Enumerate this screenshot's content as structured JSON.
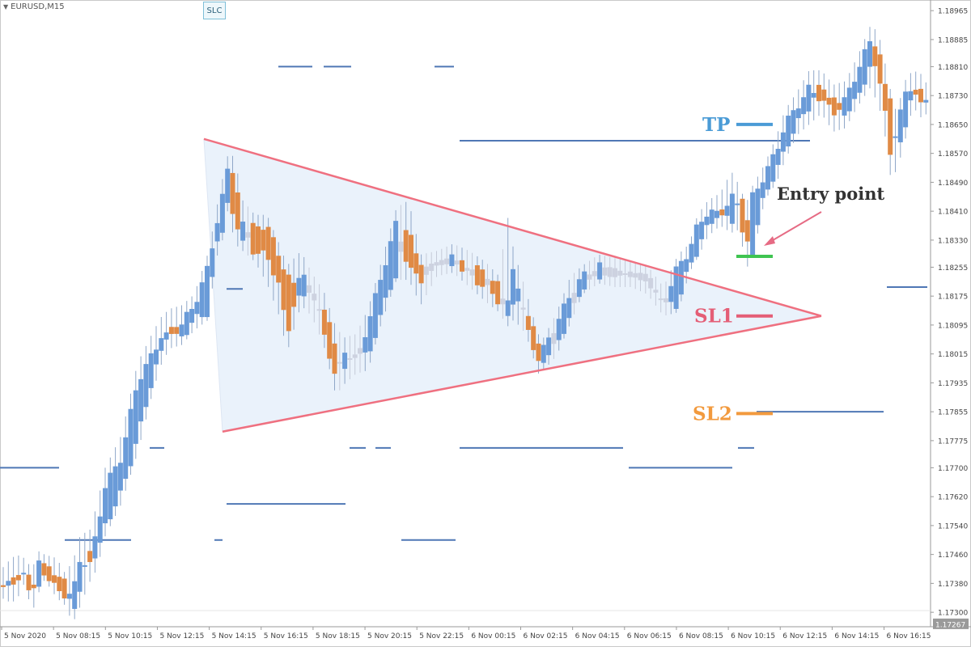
{
  "symbol": "EURUSD,M15",
  "slc_button": "SLC",
  "last_price": "1.17267",
  "annotations": {
    "tp": "TP",
    "sl1": "SL1",
    "sl2": "SL2",
    "entry": "Entry point"
  },
  "colors": {
    "bull": "#6a9bd8",
    "bear": "#e08a45",
    "neutral": "#cdd2e0",
    "triangle": "#ef7080",
    "triangle_fill": "#eaf2fb",
    "level_line": "#4f77b5",
    "tp": "#4a9bd6",
    "sl1": "#e45e76",
    "sl2": "#f29a3e",
    "entry_marker": "#3fc451",
    "arrow": "#e66b84"
  },
  "chart_data": {
    "type": "candlestick",
    "symbol": "EURUSD",
    "timeframe": "M15",
    "ylim": [
      1.1726,
      1.1899
    ],
    "y_ticks": [
      "1.18965",
      "1.18885",
      "1.18810",
      "1.18730",
      "1.18650",
      "1.18570",
      "1.18490",
      "1.18410",
      "1.18330",
      "1.18255",
      "1.18175",
      "1.18095",
      "1.18015",
      "1.17935",
      "1.17855",
      "1.17775",
      "1.17700",
      "1.17620",
      "1.17540",
      "1.17460",
      "1.17380",
      "1.17300"
    ],
    "x_ticks": [
      "5 Nov 2020",
      "5 Nov 08:15",
      "5 Nov 10:15",
      "5 Nov 12:15",
      "5 Nov 14:15",
      "5 Nov 16:15",
      "5 Nov 18:15",
      "5 Nov 20:15",
      "5 Nov 22:15",
      "6 Nov 00:15",
      "6 Nov 02:15",
      "6 Nov 04:15",
      "6 Nov 06:15",
      "6 Nov 08:15",
      "6 Nov 10:15",
      "6 Nov 12:15",
      "6 Nov 14:15",
      "6 Nov 16:15"
    ],
    "anchors": [
      [
        2,
        1.1738,
        1.1736,
        1.1742,
        1.1734
      ],
      [
        10,
        1.1736,
        1.174,
        1.1744,
        1.1733
      ],
      [
        20,
        1.1742,
        1.1736,
        1.1746,
        1.1733
      ],
      [
        30,
        1.174,
        1.1742,
        1.1745,
        1.1738
      ],
      [
        40,
        1.1739,
        1.1733,
        1.1742,
        1.173
      ],
      [
        47,
        1.1737,
        1.1744,
        1.1747,
        1.1735
      ],
      [
        55,
        1.1743,
        1.1741,
        1.1746,
        1.1739
      ],
      [
        70,
        1.1741,
        1.1736,
        1.1745,
        1.1734
      ],
      [
        80,
        1.1738,
        1.1735,
        1.1741,
        1.1732
      ],
      [
        90,
        1.1731,
        1.1735,
        1.1744,
        1.1727
      ],
      [
        100,
        1.1736,
        1.1746,
        1.1752,
        1.1732
      ],
      [
        110,
        1.1748,
        1.1742,
        1.1752,
        1.1738
      ],
      [
        120,
        1.1745,
        1.1753,
        1.176,
        1.1742
      ],
      [
        130,
        1.1754,
        1.1765,
        1.177,
        1.1751
      ],
      [
        150,
        1.1763,
        1.1773,
        1.1779,
        1.176
      ],
      [
        170,
        1.1778,
        1.1794,
        1.1799,
        1.1774
      ],
      [
        190,
        1.1796,
        1.1802,
        1.1808,
        1.1792
      ],
      [
        200,
        1.1802,
        1.1807,
        1.1812,
        1.1799
      ],
      [
        210,
        1.181,
        1.1806,
        1.1814,
        1.1803
      ],
      [
        225,
        1.1806,
        1.181,
        1.1815,
        1.1804
      ],
      [
        240,
        1.1811,
        1.1815,
        1.1818,
        1.1808
      ],
      [
        258,
        1.1813,
        1.1826,
        1.183,
        1.1811
      ],
      [
        266,
        1.183,
        1.1836,
        1.184,
        1.1827
      ],
      [
        275,
        1.1836,
        1.1845,
        1.185,
        1.1833
      ],
      [
        282,
        1.1845,
        1.1853,
        1.1857,
        1.1842
      ],
      [
        290,
        1.1853,
        1.1836,
        1.1856,
        1.1832
      ],
      [
        300,
        1.1834,
        1.1837,
        1.1844,
        1.183
      ],
      [
        315,
        1.1837,
        1.1829,
        1.184,
        1.1827
      ],
      [
        330,
        1.1837,
        1.1829,
        1.184,
        1.1821
      ],
      [
        345,
        1.1829,
        1.182,
        1.1832,
        1.1812
      ],
      [
        355,
        1.1823,
        1.1807,
        1.1826,
        1.1802
      ],
      [
        372,
        1.1818,
        1.1824,
        1.183,
        1.1815
      ],
      [
        385,
        1.1817,
        1.1821,
        1.1824,
        1.1812
      ],
      [
        400,
        1.1814,
        1.1808,
        1.1819,
        1.1804
      ],
      [
        415,
        1.1804,
        1.1794,
        1.1809,
        1.179
      ],
      [
        425,
        1.1796,
        1.1803,
        1.1806,
        1.1793
      ],
      [
        440,
        1.1803,
        1.1799,
        1.1807,
        1.1796
      ],
      [
        455,
        1.18,
        1.181,
        1.1814,
        1.1797
      ],
      [
        470,
        1.1812,
        1.1822,
        1.1826,
        1.1809
      ],
      [
        490,
        1.1824,
        1.1838,
        1.1842,
        1.1822
      ],
      [
        505,
        1.1838,
        1.1825,
        1.1844,
        1.1822
      ],
      [
        520,
        1.1825,
        1.1822,
        1.1829,
        1.1815
      ],
      [
        540,
        1.1826,
        1.1827,
        1.183,
        1.1823
      ],
      [
        560,
        1.1827,
        1.1828,
        1.1832,
        1.1824
      ],
      [
        580,
        1.1826,
        1.1823,
        1.183,
        1.182
      ],
      [
        600,
        1.1824,
        1.182,
        1.1827,
        1.1816
      ],
      [
        617,
        1.182,
        1.1816,
        1.1823,
        1.1813
      ],
      [
        627,
        1.1813,
        1.1814,
        1.184,
        1.1809
      ],
      [
        635,
        1.1815,
        1.1827,
        1.183,
        1.1811
      ],
      [
        650,
        1.1815,
        1.1809,
        1.1819,
        1.1807
      ],
      [
        665,
        1.1804,
        1.18,
        1.1807,
        1.1796
      ],
      [
        672,
        1.18,
        1.1803,
        1.1806,
        1.1797
      ],
      [
        688,
        1.1804,
        1.181,
        1.1813,
        1.1801
      ],
      [
        705,
        1.1812,
        1.1818,
        1.1823,
        1.181
      ],
      [
        720,
        1.182,
        1.1823,
        1.1826,
        1.1818
      ],
      [
        740,
        1.1823,
        1.1826,
        1.1829,
        1.1821
      ],
      [
        760,
        1.1825,
        1.1823,
        1.1828,
        1.182
      ],
      [
        780,
        1.1823,
        1.1824,
        1.1827,
        1.182
      ],
      [
        800,
        1.1823,
        1.1822,
        1.1826,
        1.1818
      ],
      [
        820,
        1.1816,
        1.1815,
        1.182,
        1.1812
      ],
      [
        838,
        1.1815,
        1.1826,
        1.1829,
        1.1813
      ],
      [
        852,
        1.1826,
        1.183,
        1.1832,
        1.1824
      ],
      [
        862,
        1.183,
        1.1837,
        1.184,
        1.1828
      ],
      [
        875,
        1.1837,
        1.1841,
        1.1844,
        1.1834
      ],
      [
        890,
        1.1841,
        1.184,
        1.1846,
        1.1837
      ],
      [
        904,
        1.1838,
        1.1845,
        1.1852,
        1.1835
      ],
      [
        914,
        1.1845,
        1.1842,
        1.1848,
        1.1836
      ],
      [
        922,
        1.1841,
        1.1829,
        1.1843,
        1.1825
      ],
      [
        930,
        1.183,
        1.1845,
        1.1848,
        1.1828
      ],
      [
        945,
        1.1846,
        1.1851,
        1.1854,
        1.1844
      ],
      [
        960,
        1.1852,
        1.1858,
        1.1862,
        1.1849
      ],
      [
        970,
        1.1858,
        1.1865,
        1.1869,
        1.1855
      ],
      [
        985,
        1.1865,
        1.187,
        1.1874,
        1.1862
      ],
      [
        1000,
        1.187,
        1.1875,
        1.188,
        1.1865
      ],
      [
        1015,
        1.1876,
        1.1872,
        1.188,
        1.1868
      ],
      [
        1030,
        1.1872,
        1.1868,
        1.1876,
        1.1863
      ],
      [
        1045,
        1.1868,
        1.1872,
        1.1877,
        1.1864
      ],
      [
        1060,
        1.1872,
        1.188,
        1.1884,
        1.187
      ],
      [
        1075,
        1.1881,
        1.1888,
        1.1892,
        1.1875
      ],
      [
        1085,
        1.1888,
        1.1879,
        1.1891,
        1.1871
      ],
      [
        1092,
        1.1879,
        1.1871,
        1.1884,
        1.1865
      ],
      [
        1100,
        1.1872,
        1.1857,
        1.1875,
        1.1851
      ],
      [
        1108,
        1.1858,
        1.1864,
        1.1868,
        1.1852
      ],
      [
        1118,
        1.1864,
        1.1873,
        1.1877,
        1.186
      ],
      [
        1128,
        1.1873,
        1.1876,
        1.188,
        1.187
      ],
      [
        1138,
        1.1876,
        1.187,
        1.1879,
        1.1867
      ],
      [
        1146,
        1.187,
        1.1872,
        1.1876,
        1.1868
      ]
    ],
    "faded_range": [
      289,
      833
    ],
    "entry_candle_time": 922,
    "triangle": {
      "upper": [
        [
          252,
          1.1861
        ],
        [
          1015,
          1.1812
        ]
      ],
      "lower": [
        [
          275,
          1.178
        ],
        [
          1015,
          1.1812
        ]
      ],
      "left_edge": [
        [
          252,
          1.1861
        ],
        [
          275,
          1.178
        ]
      ]
    },
    "levels": [
      [
        0,
        73,
        1.177
      ],
      [
        80,
        162,
        1.175
      ],
      [
        185,
        203,
        1.17755
      ],
      [
        265,
        275,
        1.175
      ],
      [
        280,
        300,
        1.18195
      ],
      [
        280,
        427,
        1.176
      ],
      [
        344,
        386,
        1.1881
      ],
      [
        400,
        434,
        1.1881
      ],
      [
        432,
        452,
        1.17755
      ],
      [
        464,
        483,
        1.17755
      ],
      [
        496,
        563,
        1.175
      ],
      [
        537,
        561,
        1.1881
      ],
      [
        568,
        770,
        1.17755
      ],
      [
        568,
        1001,
        1.18605
      ],
      [
        777,
        905,
        1.177
      ],
      [
        912,
        932,
        1.17755
      ],
      [
        935,
        1092,
        1.17855
      ],
      [
        1096,
        1146,
        1.182
      ]
    ],
    "trade_levels": {
      "tp": [
        910,
        955,
        1.1865
      ],
      "sl1": [
        910,
        955,
        1.1812
      ],
      "sl2": [
        910,
        955,
        1.1785
      ],
      "entry": [
        910,
        955,
        1.18285
      ]
    }
  }
}
